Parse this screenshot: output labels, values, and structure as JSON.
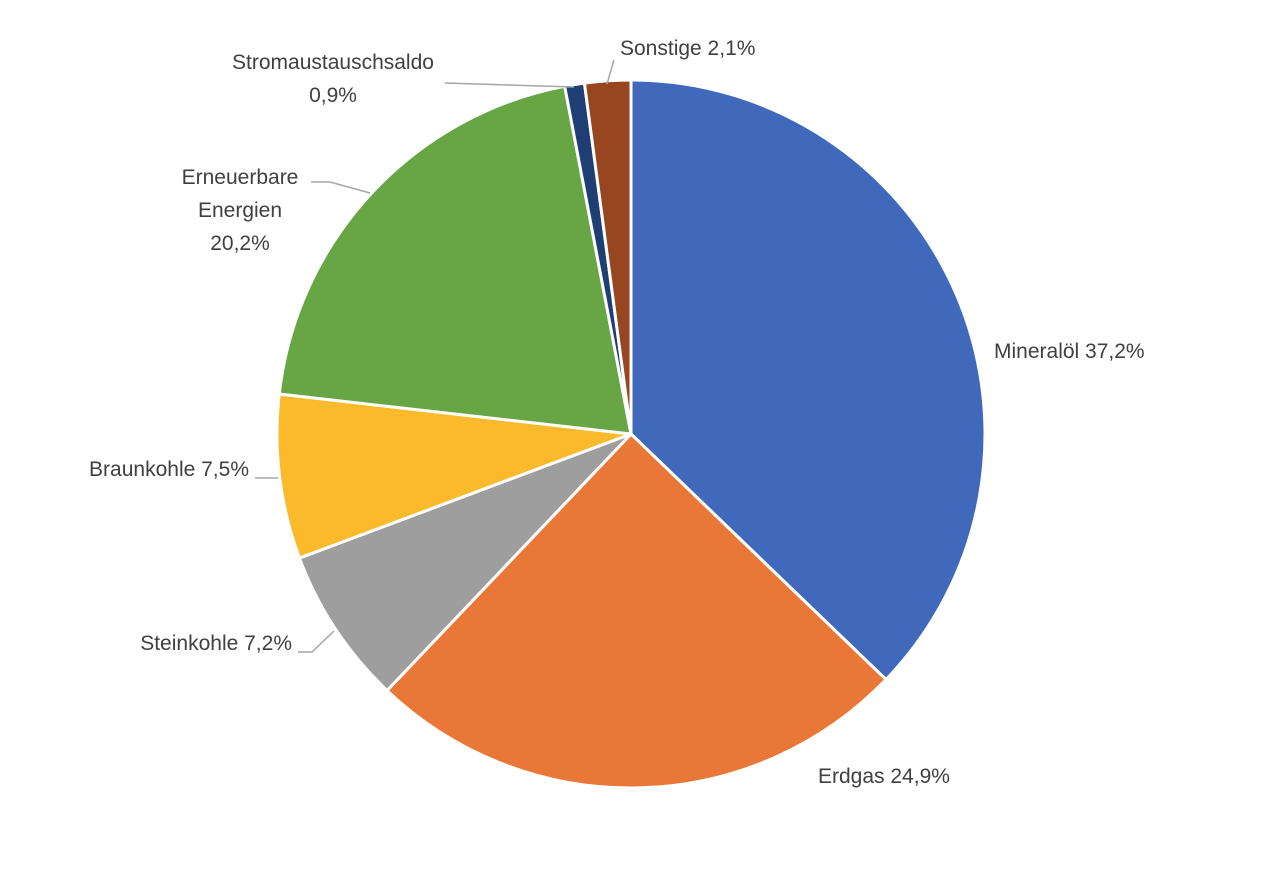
{
  "chart_data": {
    "type": "pie",
    "title": "",
    "slices": [
      {
        "name": "Mineralöl",
        "value": 37.2,
        "label_lines": [
          "Mineralöl 37,2%"
        ],
        "color": "#4068bb"
      },
      {
        "name": "Erdgas",
        "value": 24.9,
        "label_lines": [
          "Erdgas 24,9%"
        ],
        "color": "#e97838"
      },
      {
        "name": "Steinkohle",
        "value": 7.2,
        "label_lines": [
          "Steinkohle 7,2%"
        ],
        "color": "#9e9e9e"
      },
      {
        "name": "Braunkohle",
        "value": 7.5,
        "label_lines": [
          "Braunkohle 7,5%"
        ],
        "color": "#fbb92c"
      },
      {
        "name": "Erneuerbare Energien",
        "value": 20.2,
        "label_lines": [
          "Erneuerbare",
          "Energien",
          "20,2%"
        ],
        "color": "#68a545"
      },
      {
        "name": "Stromaustauschsaldo",
        "value": 0.9,
        "label_lines": [
          "Stromaustauschsaldo",
          "0,9%"
        ],
        "color": "#1f3e73"
      },
      {
        "name": "Sonstige",
        "value": 2.1,
        "label_lines": [
          "Sonstige 2,1%"
        ],
        "color": "#974620"
      }
    ],
    "start_angle": "12 o'clock",
    "direction": "clockwise",
    "legend": "none",
    "labels": "outside with leader lines"
  }
}
